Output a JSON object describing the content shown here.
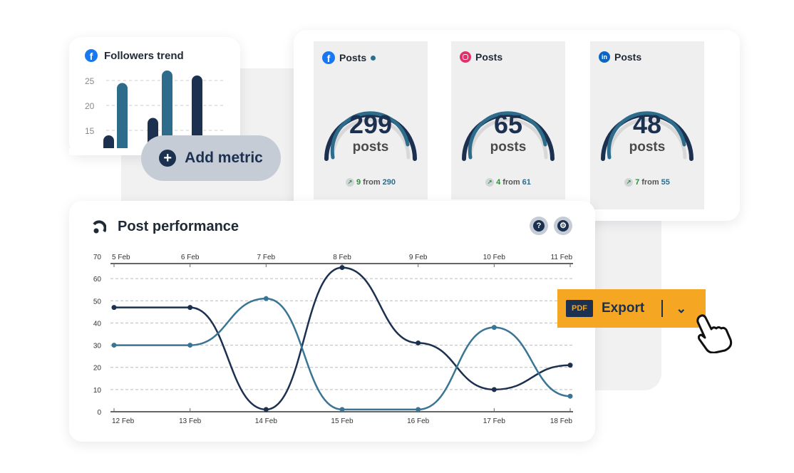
{
  "followers_card": {
    "title": "Followers trend",
    "icon": "facebook-icon",
    "y_ticks": [
      "25",
      "20",
      "15"
    ],
    "bars": [
      {
        "value": 14,
        "color": "#1c3050"
      },
      {
        "value": 24.5,
        "color": "#2e6c8c"
      },
      {
        "value": 17.5,
        "color": "#1c3050"
      },
      {
        "value": 27,
        "color": "#2e6c8c"
      },
      {
        "value": 26,
        "color": "#1c3050"
      }
    ]
  },
  "add_metric": {
    "label": "Add metric"
  },
  "post_cards": [
    {
      "network": "facebook",
      "title": "Posts",
      "value": "299",
      "unit": "posts",
      "delta": "9",
      "from_label": "from",
      "from": "290",
      "has_dot": true
    },
    {
      "network": "instagram",
      "title": "Posts",
      "value": "65",
      "unit": "posts",
      "delta": "4",
      "from_label": "from",
      "from": "61",
      "has_dot": false
    },
    {
      "network": "linkedin",
      "title": "Posts",
      "value": "48",
      "unit": "posts",
      "delta": "7",
      "from_label": "from",
      "from": "55",
      "has_dot": false
    }
  ],
  "performance": {
    "title": "Post performance",
    "help_icon": "question-icon",
    "settings_icon": "gear-icon"
  },
  "export": {
    "pdf_label": "PDF",
    "label": "Export"
  },
  "colors": {
    "dark": "#1c3050",
    "teal": "#2e6c8c",
    "accent": "#f5a623"
  },
  "chart_data": {
    "type": "line",
    "x_top": [
      "5 Feb",
      "6 Feb",
      "7 Feb",
      "8 Feb",
      "9 Feb",
      "10 Feb",
      "11 Feb"
    ],
    "x": [
      "12 Feb",
      "13 Feb",
      "14 Feb",
      "15 Feb",
      "16 Feb",
      "17 Feb",
      "18 Feb"
    ],
    "y_ticks": [
      "0",
      "10",
      "20",
      "30",
      "40",
      "50",
      "60",
      "70"
    ],
    "ylim": [
      0,
      70
    ],
    "grid": true,
    "series": [
      {
        "color": "#1c3050",
        "values": [
          47,
          47,
          1,
          65,
          31,
          10,
          21
        ]
      },
      {
        "color": "#3a7595",
        "values": [
          30,
          30,
          51,
          1,
          1,
          38,
          7
        ]
      }
    ]
  }
}
